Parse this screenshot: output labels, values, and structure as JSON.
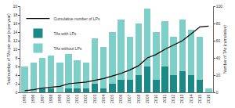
{
  "chart_data": {
    "type": "bar",
    "stacked": true,
    "legend": "top-left",
    "grid": false,
    "categories": [
      "1995",
      "1996",
      "1997",
      "1998",
      "1999",
      "2000",
      "2001",
      "2002",
      "2003",
      "2004",
      "2005",
      "2006",
      "2007",
      "2008",
      "2009",
      "2010",
      "2011",
      "2012",
      "2013",
      "2014",
      "2015",
      "2016"
    ],
    "y_label": "Total number of TAs per year (n per year)",
    "y2_label": "Number of TAs (cumulative)",
    "ylim": [
      0,
      20
    ],
    "yticks": [
      0,
      2,
      4,
      6,
      8,
      10,
      12,
      14,
      16,
      18,
      20
    ],
    "y2lim": [
      0,
      100
    ],
    "y2ticks": [
      0,
      20,
      40,
      60,
      80,
      100
    ],
    "series": [
      {
        "name": "TAs without LPs",
        "type": "bar",
        "color": "#7fcfc9",
        "values": [
          6,
          7,
          7,
          7.5,
          7,
          8,
          6.5,
          6,
          10.5,
          9.5,
          12,
          14,
          10,
          12,
          13.5,
          11,
          10.5,
          9,
          12,
          10.5,
          10,
          1
        ]
      },
      {
        "name": "TAs with LPs",
        "type": "bar",
        "color": "#1b8a87",
        "values": [
          0,
          0,
          1,
          1,
          0,
          1,
          1,
          1,
          2,
          1,
          2,
          3,
          3,
          4,
          6,
          3,
          6,
          4,
          5,
          4,
          3,
          0
        ]
      },
      {
        "name": "Cumulative number of LPs",
        "type": "line",
        "axis": "y2",
        "color": "#000000",
        "values": [
          2,
          3,
          5,
          6,
          7,
          10,
          11,
          12,
          14,
          16,
          19,
          22,
          26,
          31,
          40,
          44,
          50,
          55,
          60,
          68,
          76,
          77
        ]
      }
    ]
  }
}
